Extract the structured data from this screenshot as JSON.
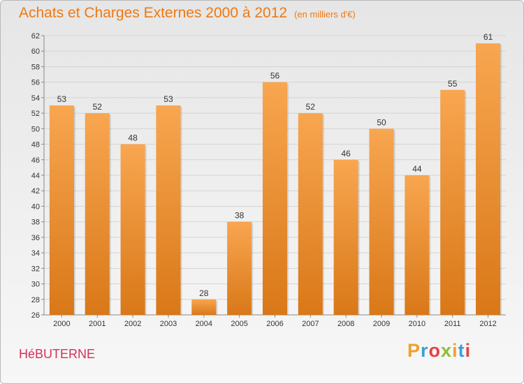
{
  "title": "Achats et Charges Externes 2000 à 2012",
  "unit": "(en milliers d'€)",
  "commune": "HéBUTERNE",
  "logo": {
    "letters": [
      "P",
      "r",
      "o",
      "x",
      "i",
      "t",
      "i"
    ],
    "colors": [
      "#f0a030",
      "#3aa0d8",
      "#e84040",
      "#8cc030",
      "#f0a030",
      "#3aa0d8",
      "#e84040"
    ]
  },
  "colors": {
    "bar_top": "#f8a650",
    "bar_bottom": "#d97818",
    "title": "#f07810",
    "commune": "#d8305a"
  },
  "chart_data": {
    "type": "bar",
    "title": "Achats et Charges Externes 2000 à 2012",
    "subtitle": "(en milliers d'€)",
    "categories": [
      "2000",
      "2001",
      "2002",
      "2003",
      "2004",
      "2005",
      "2006",
      "2007",
      "2008",
      "2009",
      "2010",
      "2011",
      "2012"
    ],
    "values": [
      53,
      52,
      48,
      53,
      28,
      38,
      56,
      52,
      46,
      50,
      44,
      55,
      61
    ],
    "ylim": [
      26,
      62
    ],
    "yticks": [
      26,
      28,
      30,
      32,
      34,
      36,
      38,
      40,
      42,
      44,
      46,
      48,
      50,
      52,
      54,
      56,
      58,
      60,
      62
    ],
    "grid": true,
    "xlabel": "",
    "ylabel": ""
  }
}
